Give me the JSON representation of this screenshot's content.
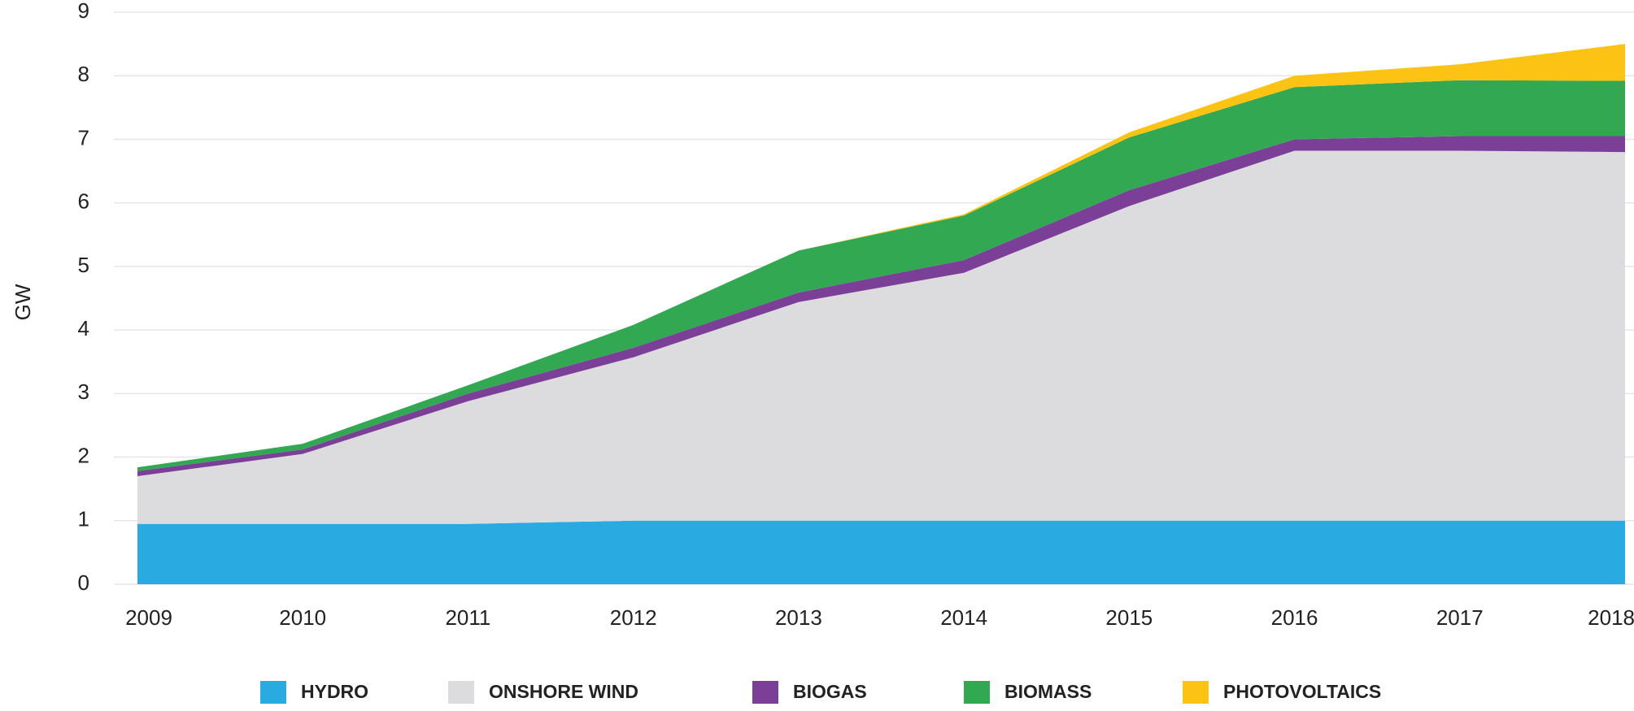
{
  "chart_data": {
    "type": "stacked-area",
    "y_label": "GW",
    "categories": [
      "2009",
      "2010",
      "2011",
      "2012",
      "2013",
      "2014",
      "2015",
      "2016",
      "2017",
      "2018"
    ],
    "series": [
      {
        "name": "HYDRO",
        "color": "#29abe2",
        "values": [
          0.95,
          0.95,
          0.95,
          1.0,
          1.0,
          1.0,
          1.0,
          1.0,
          1.0,
          1.0
        ]
      },
      {
        "name": "ONSHORE WIND",
        "color": "#dcdcde",
        "values": [
          0.75,
          1.1,
          1.93,
          2.57,
          3.44,
          3.9,
          4.95,
          5.82,
          5.82,
          5.8
        ]
      },
      {
        "name": "BIOGAS",
        "color": "#7b3f98",
        "values": [
          0.08,
          0.07,
          0.12,
          0.15,
          0.15,
          0.2,
          0.25,
          0.18,
          0.23,
          0.25
        ]
      },
      {
        "name": "BIOMASS",
        "color": "#33a852",
        "values": [
          0.06,
          0.09,
          0.13,
          0.36,
          0.66,
          0.7,
          0.83,
          0.82,
          0.88,
          0.87
        ]
      },
      {
        "name": "PHOTOVOLTAICS",
        "color": "#fcc314",
        "values": [
          0,
          0,
          0,
          0,
          0,
          0.02,
          0.08,
          0.18,
          0.25,
          0.58
        ]
      }
    ],
    "ylim": [
      0,
      9
    ],
    "yticks": [
      0,
      1,
      2,
      3,
      4,
      5,
      6,
      7,
      8,
      9
    ],
    "grid": true
  }
}
